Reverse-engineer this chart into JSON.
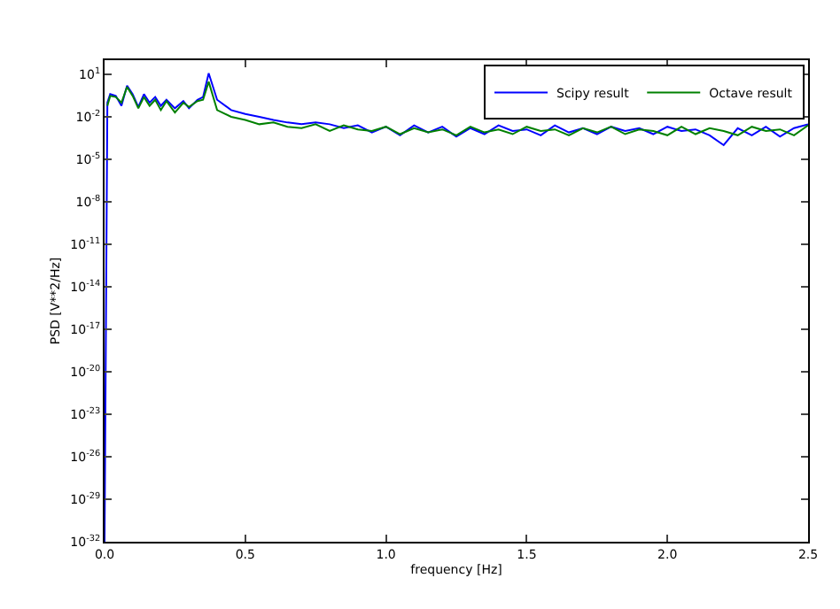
{
  "chart_data": {
    "type": "line",
    "xlabel": "frequency [Hz]",
    "ylabel": "PSD [V**2/Hz]",
    "log": "y",
    "legend": "top right",
    "marker": "none",
    "line_style": "solid",
    "xlim": [
      0,
      2.5
    ],
    "xticks": [
      {
        "value": 0,
        "label": "0.0"
      },
      0.5,
      {
        "value": 1,
        "label": "1.0"
      },
      1.5,
      {
        "value": 2,
        "label": "2.0"
      },
      2.5
    ],
    "ylim": [
      1e-32,
      100
    ],
    "yticks": [
      {
        "value": 10,
        "label": "10$^{1}$"
      },
      {
        "value": 0.01,
        "label": "10$^{-2}$"
      },
      {
        "value": 1e-05,
        "label": "10$^{-5}$"
      },
      {
        "value": 1e-08,
        "label": "10$^{-8}$"
      },
      {
        "value": 1e-11,
        "label": "10$^{-11}$"
      },
      {
        "value": 1e-14,
        "label": "10$^{-14}$"
      },
      {
        "value": 1e-17,
        "label": "10$^{-17}$"
      },
      {
        "value": 1e-20,
        "label": "10$^{-20}$"
      },
      {
        "value": 1e-23,
        "label": "10$^{-23}$"
      },
      {
        "value": 1e-26,
        "label": "10$^{-26}$"
      },
      {
        "value": 1e-29,
        "label": "10$^{-29}$"
      },
      {
        "value": 1e-32,
        "label": "10$^{-32}$"
      }
    ],
    "series": [
      {
        "name": "Scipy result",
        "color": "#0000ff",
        "x": [
          0,
          0.01,
          0.02,
          0.04,
          0.06,
          0.08,
          0.1,
          0.12,
          0.14,
          0.16,
          0.18,
          0.2,
          0.22,
          0.25,
          0.28,
          0.3,
          0.33,
          0.35,
          0.37,
          0.4,
          0.45,
          0.5,
          0.55,
          0.6,
          0.65,
          0.7,
          0.75,
          0.8,
          0.85,
          0.9,
          0.95,
          1.0,
          1.05,
          1.1,
          1.15,
          1.2,
          1.25,
          1.3,
          1.35,
          1.4,
          1.45,
          1.5,
          1.55,
          1.6,
          1.65,
          1.7,
          1.75,
          1.8,
          1.85,
          1.9,
          1.95,
          2.0,
          2.05,
          2.1,
          2.15,
          2.2,
          2.25,
          2.3,
          2.35,
          2.4,
          2.45,
          2.5
        ],
        "values": [
          1e-32,
          0.1,
          0.4,
          0.3,
          0.06,
          1.6,
          0.4,
          0.05,
          0.4,
          0.1,
          0.25,
          0.06,
          0.16,
          0.04,
          0.13,
          0.04,
          0.16,
          0.25,
          12,
          0.16,
          0.03,
          0.016,
          0.01,
          0.006,
          0.004,
          0.003,
          0.004,
          0.003,
          0.0016,
          0.0025,
          0.0008,
          0.002,
          0.0005,
          0.0025,
          0.0008,
          0.002,
          0.0004,
          0.0016,
          0.0006,
          0.0025,
          0.001,
          0.0013,
          0.0005,
          0.0025,
          0.0008,
          0.0016,
          0.0006,
          0.002,
          0.001,
          0.0016,
          0.0006,
          0.002,
          0.001,
          0.0013,
          0.0005,
          0.0001,
          0.0016,
          0.0005,
          0.002,
          0.0004,
          0.0016,
          0.003
        ]
      },
      {
        "name": "Octave result",
        "color": "#008000",
        "x": [
          0.01,
          0.02,
          0.04,
          0.06,
          0.08,
          0.1,
          0.12,
          0.14,
          0.16,
          0.18,
          0.2,
          0.22,
          0.25,
          0.28,
          0.3,
          0.33,
          0.35,
          0.37,
          0.4,
          0.45,
          0.5,
          0.55,
          0.6,
          0.65,
          0.7,
          0.75,
          0.8,
          0.85,
          0.9,
          0.95,
          1.0,
          1.05,
          1.1,
          1.15,
          1.2,
          1.25,
          1.3,
          1.35,
          1.4,
          1.45,
          1.5,
          1.55,
          1.6,
          1.65,
          1.7,
          1.75,
          1.8,
          1.85,
          1.9,
          1.95,
          2.0,
          2.05,
          2.1,
          2.15,
          2.2,
          2.25,
          2.3,
          2.35,
          2.4,
          2.45,
          2.5
        ],
        "values": [
          0.06,
          0.3,
          0.25,
          0.1,
          1.3,
          0.3,
          0.04,
          0.25,
          0.06,
          0.16,
          0.03,
          0.13,
          0.02,
          0.1,
          0.05,
          0.13,
          0.16,
          3,
          0.03,
          0.01,
          0.006,
          0.003,
          0.004,
          0.002,
          0.0016,
          0.003,
          0.001,
          0.0025,
          0.0013,
          0.001,
          0.002,
          0.0006,
          0.0016,
          0.0008,
          0.0013,
          0.0005,
          0.002,
          0.0008,
          0.0013,
          0.0006,
          0.002,
          0.001,
          0.0013,
          0.0005,
          0.0016,
          0.0008,
          0.002,
          0.0006,
          0.0013,
          0.001,
          0.0005,
          0.002,
          0.0006,
          0.0016,
          0.001,
          0.0005,
          0.002,
          0.001,
          0.0013,
          0.0005,
          0.0025
        ]
      }
    ]
  }
}
